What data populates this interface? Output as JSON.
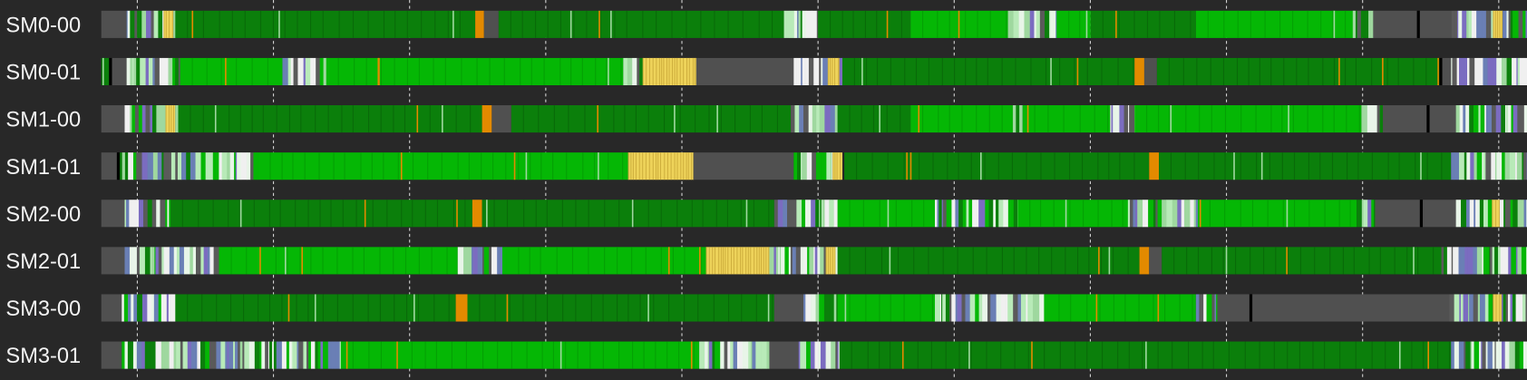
{
  "rows": [
    {
      "label": "SM0-00"
    },
    {
      "label": "SM0-01"
    },
    {
      "label": "SM1-00"
    },
    {
      "label": "SM1-01"
    },
    {
      "label": "SM2-00"
    },
    {
      "label": "SM2-01"
    },
    {
      "label": "SM3-00"
    },
    {
      "label": "SM3-01"
    }
  ]
}
